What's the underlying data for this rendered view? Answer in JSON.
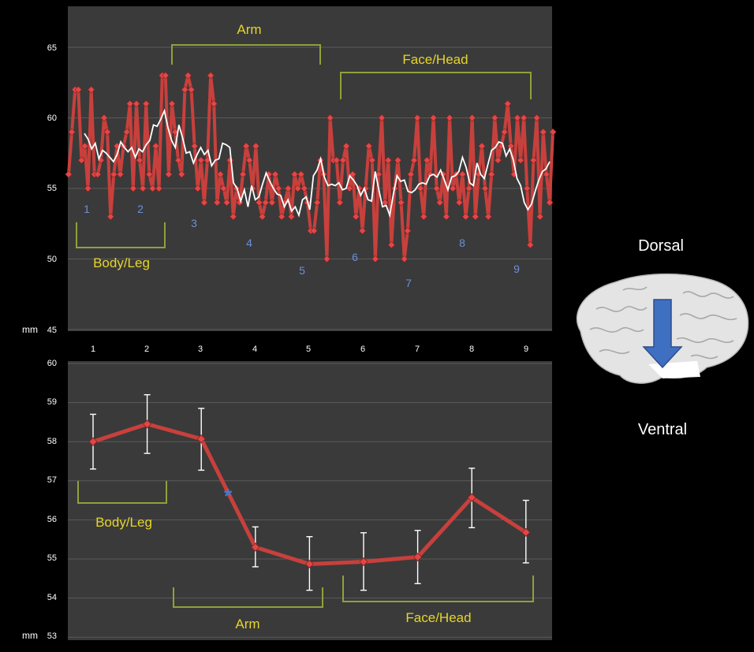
{
  "chart_data": [
    {
      "type": "line",
      "unit_label": "mm",
      "ylim": [
        45,
        65
      ],
      "y_ticks": [
        65,
        60,
        55,
        50,
        45
      ],
      "grid": true,
      "segment_labels": [
        "1",
        "2",
        "3",
        "4",
        "5",
        "6",
        "7",
        "8",
        "9"
      ],
      "series": [
        {
          "values": [
            56,
            59,
            62,
            62,
            57,
            58,
            55,
            62,
            56,
            56,
            57,
            60,
            59,
            53,
            56,
            58,
            56,
            58,
            59,
            61,
            55,
            61,
            57,
            55,
            61,
            56,
            55,
            58,
            55,
            63,
            63,
            56,
            61,
            59,
            57,
            56,
            62,
            63,
            62,
            58,
            55,
            57,
            54,
            57,
            63,
            61,
            54,
            56,
            55,
            54,
            57,
            53,
            55,
            54,
            56,
            58,
            57,
            55,
            58,
            54,
            53,
            54,
            56,
            54,
            56,
            55,
            53,
            54,
            55,
            53,
            56,
            55,
            56,
            55,
            54,
            52,
            52,
            54,
            57,
            56,
            50,
            60,
            57,
            57,
            54,
            57,
            58,
            55,
            56,
            53,
            55,
            52,
            55,
            58,
            57,
            50,
            56,
            60,
            54,
            57,
            51,
            55,
            57,
            54,
            50,
            52,
            56,
            57,
            60,
            55,
            53,
            57,
            56,
            60,
            55,
            54,
            56,
            53,
            60,
            55,
            56,
            54,
            56,
            53,
            55,
            60,
            53,
            56,
            58,
            55,
            53,
            56,
            60,
            57,
            58,
            59,
            61,
            58,
            56,
            60,
            57,
            60,
            55,
            51,
            57,
            60,
            53,
            59,
            56,
            54,
            59
          ]
        },
        {
          "values": [
            58.9,
            58.5,
            57.8,
            58.2,
            57.1,
            57.7,
            57.5,
            57.2,
            56.9,
            57.4,
            58.3,
            57.9,
            57.6,
            57.9,
            57.2,
            57.8,
            57.6,
            58.1,
            58.4,
            59.5,
            59.4,
            59.9,
            60.5,
            59.3,
            58.4,
            57.9,
            59.5,
            58.6,
            57.5,
            57.6,
            56.8,
            57.4,
            57.9,
            57.4,
            57.7,
            56.6,
            57.0,
            57.1,
            58.2,
            58.1,
            57.9,
            55.4,
            55.0,
            54.1,
            54.9,
            53.7,
            55.2,
            54.2,
            54.4,
            55.3,
            56.1,
            55.5,
            55.0,
            54.6,
            54.5,
            53.7,
            54.2,
            53.4,
            53.7,
            53.1,
            54.2,
            54.4,
            53.5,
            55.9,
            56.3,
            57.1,
            55.8,
            55.2,
            55.3,
            55.2,
            55.4,
            54.9,
            55.0,
            55.9,
            55.6,
            55.2,
            54.5,
            55.0,
            54.2,
            54.1,
            56.2,
            54.9,
            53.7,
            53.8,
            53.1,
            54.6,
            55.9,
            55.5,
            55.6,
            54.8,
            54.7,
            54.9,
            55.3,
            55.4,
            55.3,
            55.9,
            56.0,
            55.8,
            56.3,
            55.6,
            54.9,
            55.8,
            55.9,
            56.2,
            57.2,
            56.5,
            55.4,
            55.2,
            56.8,
            56.0,
            55.7,
            56.7,
            57.7,
            57.9,
            58.3,
            58.2,
            57.3,
            57.8,
            57.0,
            55.7,
            55.2,
            54.0,
            53.5,
            53.9,
            54.8,
            55.6,
            56.2,
            56.4,
            56.9
          ]
        }
      ],
      "annotations": [
        "Body/Leg",
        "Arm",
        "Face/Head"
      ]
    },
    {
      "type": "line",
      "unit_label": "mm",
      "categories": [
        "1",
        "2",
        "3",
        "4",
        "5",
        "6",
        "7",
        "8",
        "9"
      ],
      "ylim": [
        53,
        60
      ],
      "y_ticks": [
        60,
        59,
        58,
        57,
        56,
        55,
        54,
        53
      ],
      "grid": true,
      "series": [
        {
          "values": [
            58.0,
            58.45,
            58.07,
            55.3,
            54.87,
            54.93,
            55.05,
            56.57,
            55.68
          ],
          "error_low": [
            57.3,
            57.7,
            57.27,
            54.8,
            54.2,
            54.2,
            54.37,
            55.8,
            54.9
          ],
          "error_high": [
            58.7,
            59.2,
            58.85,
            55.82,
            55.57,
            55.67,
            55.73,
            57.32,
            56.5
          ]
        }
      ],
      "significance_marker": "*",
      "annotations": [
        "Body/Leg",
        "Arm",
        "Face/Head"
      ]
    }
  ],
  "brain": {
    "top_label": "Dorsal",
    "bottom_label": "Ventral",
    "arrow_color": "#3f6fc0"
  },
  "colors": {
    "plot_bg": "#3a3a3a",
    "series_red": "#c8403c",
    "marker_red": "#e04848",
    "moving_avg": "#ffffff",
    "bracket_green": "#8ea23a",
    "region_text": "#e6d52a",
    "segment_text": "#6b8fd8"
  }
}
